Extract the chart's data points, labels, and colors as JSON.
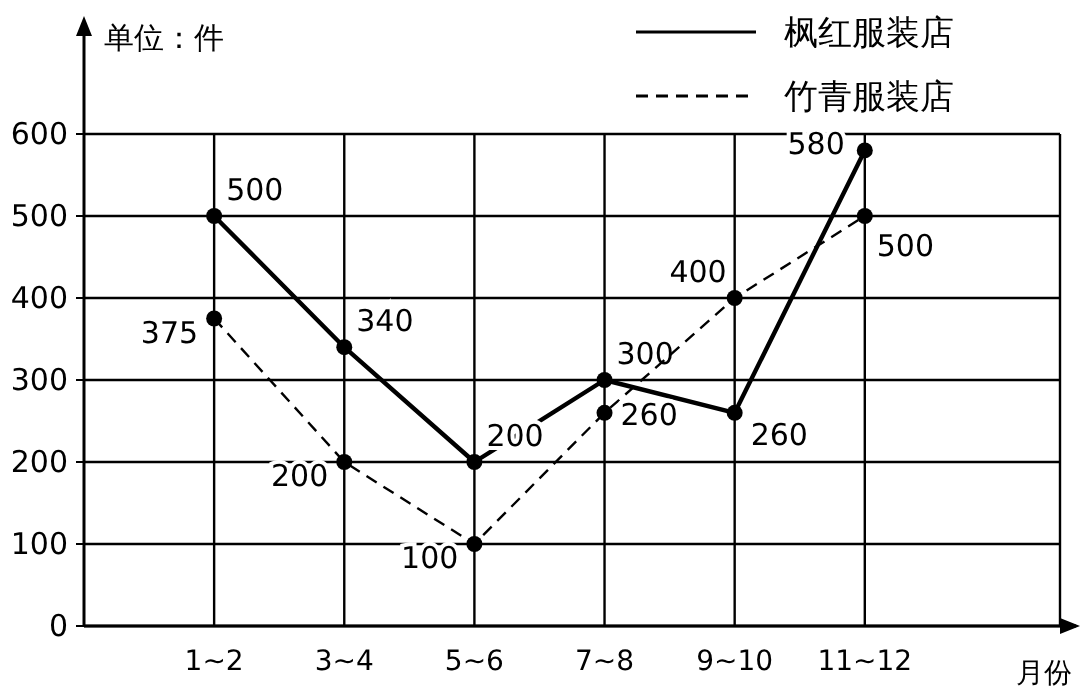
{
  "chart_data": {
    "type": "line",
    "xlabel": "月份",
    "ylabel": "单位：件",
    "categories": [
      "1~2",
      "3~4",
      "5~6",
      "7~8",
      "9~10",
      "11~12"
    ],
    "series": [
      {
        "name": "枫红服装店",
        "color": "#000000",
        "line_style": "solid",
        "values": [
          500,
          340,
          200,
          300,
          260,
          580
        ]
      },
      {
        "name": "竹青服装店",
        "color": "#000000",
        "line_style": "dashed",
        "values": [
          375,
          200,
          100,
          260,
          400,
          500
        ]
      }
    ],
    "ylim": [
      0,
      600
    ],
    "yticks": [
      0,
      100,
      200,
      300,
      400,
      500,
      600
    ],
    "grid": true,
    "legend": "top right",
    "marker": "circle",
    "data_labels": true
  }
}
